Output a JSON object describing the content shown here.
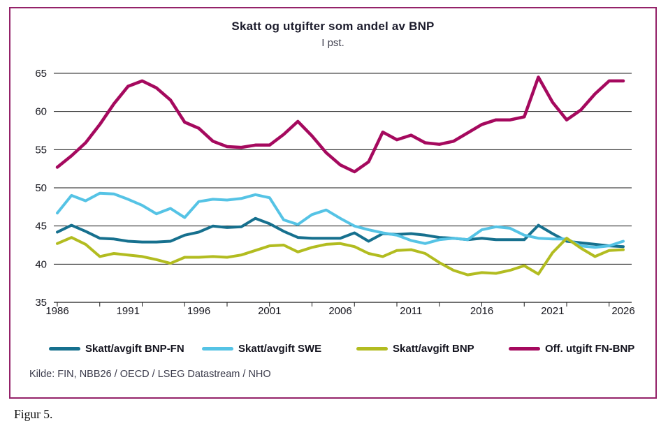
{
  "figure": {
    "caption": "Figur 5."
  },
  "chart": {
    "title": "Skatt og utgifter som andel av BNP",
    "subtitle": "I pst.",
    "source": "Kilde: FIN, NBB26 / OECD / LSEG Datastream / NHO",
    "border_color": "#942269"
  },
  "chart_data": {
    "type": "line",
    "title": "Skatt og utgifter som andel av BNP",
    "subtitle": "I pst.",
    "xlabel": "",
    "ylabel": "",
    "ylim": [
      35,
      65
    ],
    "y_ticks": [
      35,
      40,
      45,
      50,
      55,
      60,
      65
    ],
    "x_range": [
      1986,
      2026
    ],
    "x_tick_labels": [
      1986,
      1991,
      1996,
      2001,
      2006,
      2011,
      2016,
      2021,
      2026
    ],
    "minor_tick_interval_years": 3,
    "grid": "horizontal",
    "legend_position": "bottom",
    "x": [
      1986,
      1987,
      1988,
      1989,
      1990,
      1991,
      1992,
      1993,
      1994,
      1995,
      1996,
      1997,
      1998,
      1999,
      2000,
      2001,
      2002,
      2003,
      2004,
      2005,
      2006,
      2007,
      2008,
      2009,
      2010,
      2011,
      2012,
      2013,
      2014,
      2015,
      2016,
      2017,
      2018,
      2019,
      2020,
      2021,
      2022,
      2023,
      2024,
      2025,
      2026
    ],
    "series": [
      {
        "name": "Skatt/avgift BNP-FN",
        "color": "#16708e",
        "values": [
          44.2,
          45.1,
          44.3,
          43.4,
          43.3,
          43.0,
          42.9,
          42.9,
          43.0,
          43.8,
          44.2,
          45.0,
          44.8,
          44.9,
          46.0,
          45.3,
          44.3,
          43.5,
          43.4,
          43.4,
          43.4,
          44.1,
          43.0,
          44.0,
          43.9,
          44.0,
          43.8,
          43.5,
          43.4,
          43.2,
          43.4,
          43.2,
          43.2,
          43.2,
          45.1,
          44.0,
          43.0,
          42.8,
          42.6,
          42.4,
          42.3
        ]
      },
      {
        "name": "Skatt/avgift SWE",
        "color": "#55c3e5",
        "values": [
          46.7,
          49.0,
          48.3,
          49.3,
          49.2,
          48.5,
          47.7,
          46.6,
          47.3,
          46.1,
          48.2,
          48.5,
          48.4,
          48.6,
          49.1,
          48.7,
          45.8,
          45.2,
          46.5,
          47.1,
          46.0,
          45.0,
          44.5,
          44.1,
          43.8,
          43.1,
          42.7,
          43.2,
          43.4,
          43.2,
          44.5,
          44.9,
          44.7,
          43.8,
          43.4,
          43.3,
          43.3,
          42.4,
          42.2,
          42.4,
          43.0
        ]
      },
      {
        "name": "Skatt/avgift BNP",
        "color": "#b2bc20",
        "values": [
          42.7,
          43.5,
          42.6,
          41.0,
          41.4,
          41.2,
          41.0,
          40.6,
          40.1,
          40.9,
          40.9,
          41.0,
          40.9,
          41.2,
          41.8,
          42.4,
          42.5,
          41.6,
          42.2,
          42.6,
          42.7,
          42.3,
          41.4,
          41.0,
          41.8,
          41.9,
          41.4,
          40.2,
          39.2,
          38.6,
          38.9,
          38.8,
          39.2,
          39.8,
          38.7,
          41.5,
          43.4,
          42.1,
          41.0,
          41.8,
          41.9
        ]
      },
      {
        "name": "Off. utgift FN-BNP",
        "color": "#a5095e",
        "values": [
          52.7,
          54.2,
          55.9,
          58.3,
          61.0,
          63.3,
          64.0,
          63.1,
          61.5,
          58.6,
          57.8,
          56.1,
          55.4,
          55.3,
          55.6,
          55.6,
          57.0,
          58.7,
          56.8,
          54.6,
          53.0,
          52.1,
          53.4,
          57.3,
          56.3,
          56.9,
          55.9,
          55.7,
          56.1,
          57.2,
          58.3,
          58.9,
          58.9,
          59.3,
          64.5,
          61.2,
          58.9,
          60.2,
          62.3,
          64.0,
          64.0
        ]
      }
    ]
  }
}
